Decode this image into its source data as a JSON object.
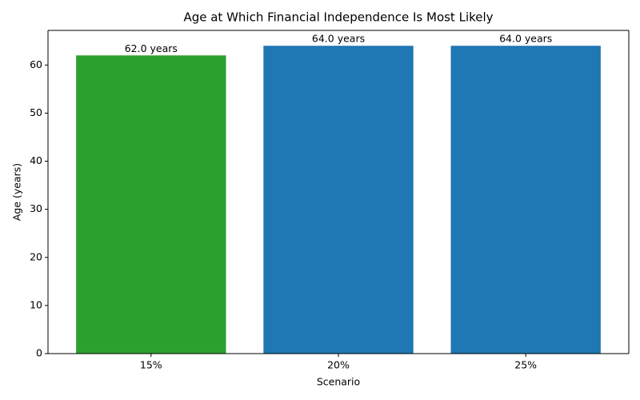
{
  "chart_data": {
    "type": "bar",
    "title": "Age at Which Financial Independence Is Most Likely",
    "x_label": "Scenario",
    "y_label": "Age (years)",
    "categories": [
      "15%",
      "20%",
      "25%"
    ],
    "values": [
      62.0,
      64.0,
      64.0
    ],
    "value_labels": [
      "62.0 years",
      "64.0 years",
      "64.0 years"
    ],
    "colors": [
      "#2ca02c",
      "#1f77b4",
      "#1f77b4"
    ],
    "ylim": [
      0,
      67.2
    ],
    "yticks": [
      0,
      10,
      20,
      30,
      40,
      50,
      60
    ],
    "grid": false
  }
}
